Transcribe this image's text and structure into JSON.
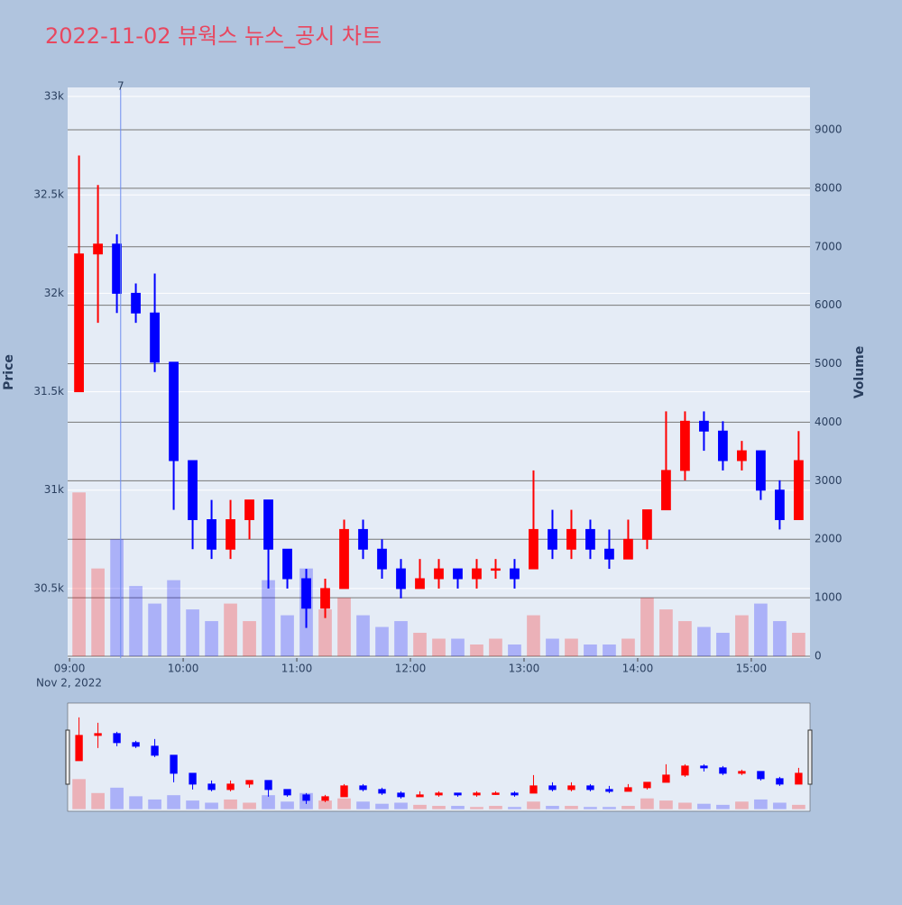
{
  "chart_data": {
    "type": "candlestick",
    "title": "2022-11-02 뷰웍스 뉴스_공시 차트",
    "x": [
      "09:00",
      "09:10",
      "09:20",
      "09:30",
      "09:40",
      "09:50",
      "10:00",
      "10:10",
      "10:20",
      "10:30",
      "10:40",
      "10:50",
      "11:00",
      "11:10",
      "11:20",
      "11:30",
      "11:40",
      "11:50",
      "12:00",
      "12:10",
      "12:20",
      "12:30",
      "12:40",
      "12:50",
      "13:00",
      "13:10",
      "13:20",
      "13:30",
      "13:40",
      "13:50",
      "14:00",
      "14:10",
      "14:20",
      "14:30",
      "14:40",
      "14:50",
      "15:00",
      "15:10",
      "15:20"
    ],
    "open": [
      31500,
      32200,
      32250,
      32000,
      31900,
      31650,
      31150,
      30850,
      30700,
      30850,
      30950,
      30700,
      30550,
      30400,
      30500,
      30800,
      30700,
      30600,
      30500,
      30550,
      30600,
      30550,
      30600,
      30600,
      30600,
      30800,
      30700,
      30800,
      30700,
      30650,
      30750,
      30900,
      31100,
      31350,
      31300,
      31150,
      31200,
      31000,
      30850
    ],
    "high": [
      32700,
      32550,
      32300,
      32050,
      32100,
      31650,
      31150,
      30950,
      30950,
      30950,
      30950,
      30700,
      30600,
      30550,
      30850,
      30850,
      30750,
      30650,
      30650,
      30650,
      30600,
      30650,
      30650,
      30650,
      31100,
      30900,
      30900,
      30850,
      30800,
      30850,
      30900,
      31400,
      31400,
      31400,
      31350,
      31250,
      31200,
      31050,
      31300
    ],
    "low": [
      31500,
      31850,
      31900,
      31850,
      31600,
      30900,
      30700,
      30650,
      30650,
      30750,
      30500,
      30500,
      30300,
      30350,
      30500,
      30650,
      30550,
      30450,
      30500,
      30500,
      30500,
      30500,
      30550,
      30500,
      30600,
      30650,
      30650,
      30650,
      30600,
      30650,
      30700,
      30900,
      31050,
      31200,
      31100,
      31100,
      30950,
      30800,
      30850
    ],
    "close": [
      32200,
      32250,
      32000,
      31900,
      31650,
      31150,
      30850,
      30700,
      30850,
      30950,
      30700,
      30550,
      30400,
      30500,
      30800,
      30700,
      30600,
      30500,
      30550,
      30600,
      30550,
      30600,
      30600,
      30550,
      30800,
      30700,
      30800,
      30700,
      30650,
      30750,
      30900,
      31100,
      31350,
      31300,
      31150,
      31200,
      31000,
      30850,
      31150
    ],
    "volume": [
      2800,
      1500,
      2000,
      1200,
      900,
      1300,
      800,
      600,
      900,
      600,
      1300,
      700,
      1500,
      800,
      1000,
      700,
      500,
      600,
      400,
      300,
      300,
      200,
      300,
      200,
      700,
      300,
      300,
      200,
      200,
      300,
      1000,
      800,
      600,
      500,
      400,
      700,
      900,
      600,
      400
    ],
    "increasing_color": "#ff0000",
    "decreasing_color": "#0000ff",
    "ylabel": "Price",
    "y2label": "Volume",
    "ylim": [
      30147,
      33046
    ],
    "yticks": [
      {
        "value": 30500,
        "label": "30.5k"
      },
      {
        "value": 31000,
        "label": "31k"
      },
      {
        "value": 31500,
        "label": "31.5k"
      },
      {
        "value": 32000,
        "label": "32k"
      },
      {
        "value": 32500,
        "label": "32.5k"
      },
      {
        "value": 33000,
        "label": "33k"
      }
    ],
    "y2lim": [
      -31,
      9724
    ],
    "y2ticks": [
      0,
      1000,
      2000,
      3000,
      4000,
      5000,
      6000,
      7000,
      8000,
      9000
    ],
    "xlim": [
      "08:59",
      "15:31"
    ],
    "xticks": [
      "09:00",
      "10:00",
      "11:00",
      "12:00",
      "13:00",
      "14:00",
      "15:00"
    ],
    "x_date_label": "Nov 2, 2022",
    "annotations": [
      {
        "x": "09:27",
        "text": "7"
      }
    ],
    "rangeslider": true
  }
}
